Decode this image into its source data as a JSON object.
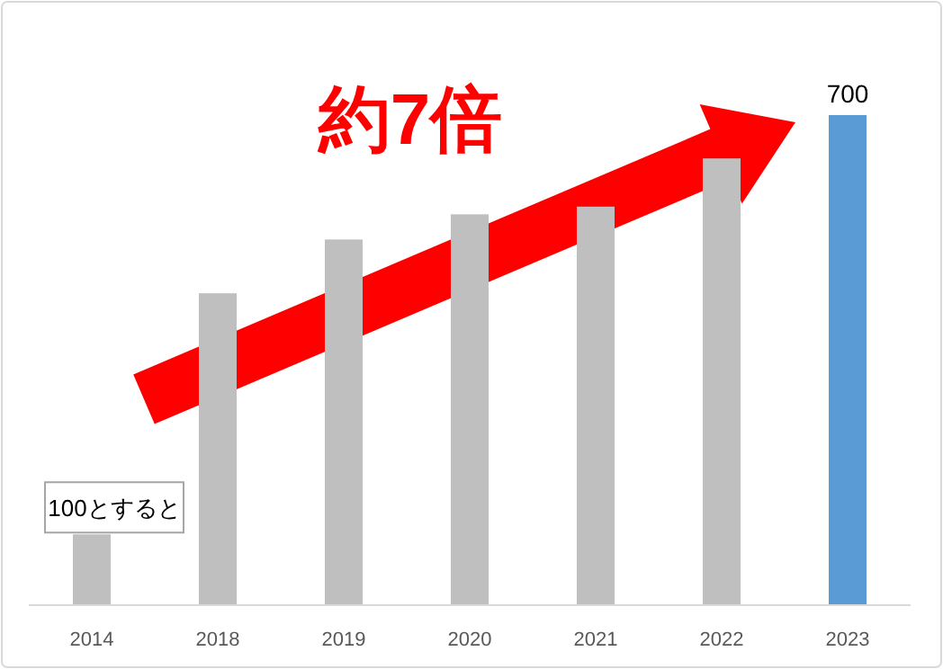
{
  "chart_data": {
    "type": "bar",
    "categories": [
      "2014",
      "2018",
      "2019",
      "2020",
      "2021",
      "2022",
      "2023"
    ],
    "values": [
      100,
      445,
      522,
      558,
      569,
      638,
      700
    ],
    "colors": [
      "#bfbfbf",
      "#bfbfbf",
      "#bfbfbf",
      "#bfbfbf",
      "#bfbfbf",
      "#bfbfbf",
      "#5b9bd5"
    ],
    "value_labels": [
      "100とすると",
      null,
      null,
      null,
      null,
      null,
      "700"
    ],
    "annotations": [
      "約7倍"
    ]
  }
}
